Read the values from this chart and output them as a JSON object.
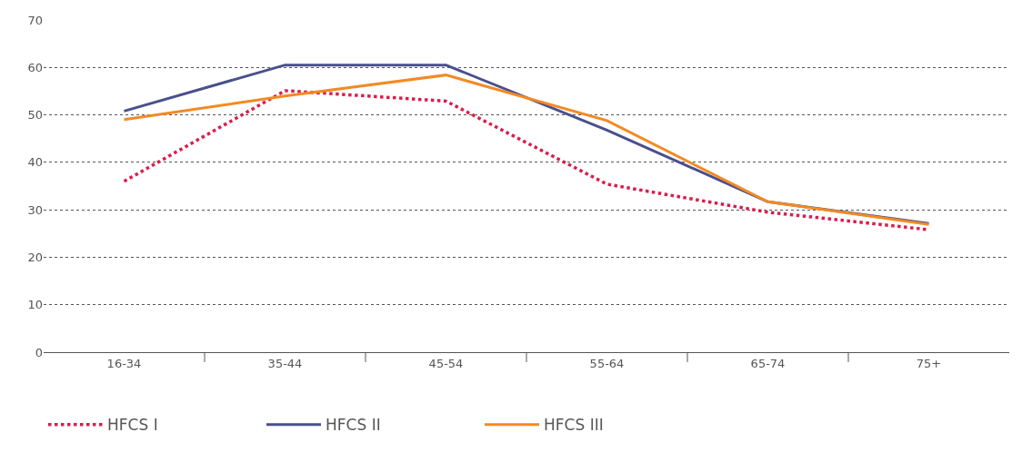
{
  "chart_data": {
    "type": "line",
    "categories": [
      "16-34",
      "35-44",
      "45-54",
      "55-64",
      "65-74",
      "75+"
    ],
    "series": [
      {
        "name": "HFCS I",
        "color": "#d81e4b",
        "line_style": "dotted",
        "values": [
          36.0,
          55.1,
          52.9,
          35.4,
          29.5,
          25.8
        ]
      },
      {
        "name": "HFCS II",
        "color": "#4a4f8d",
        "line_style": "solid",
        "values": [
          50.8,
          60.5,
          60.5,
          46.8,
          31.7,
          27.1
        ]
      },
      {
        "name": "HFCS III",
        "color": "#f28a24",
        "line_style": "solid",
        "values": [
          49.0,
          54.0,
          58.4,
          48.8,
          31.7,
          26.9
        ]
      }
    ],
    "ylim": [
      0,
      70
    ],
    "yticks": [
      0,
      10,
      20,
      30,
      40,
      50,
      60,
      70
    ],
    "grid": "y",
    "legend": "bottom left",
    "marker": "none"
  }
}
